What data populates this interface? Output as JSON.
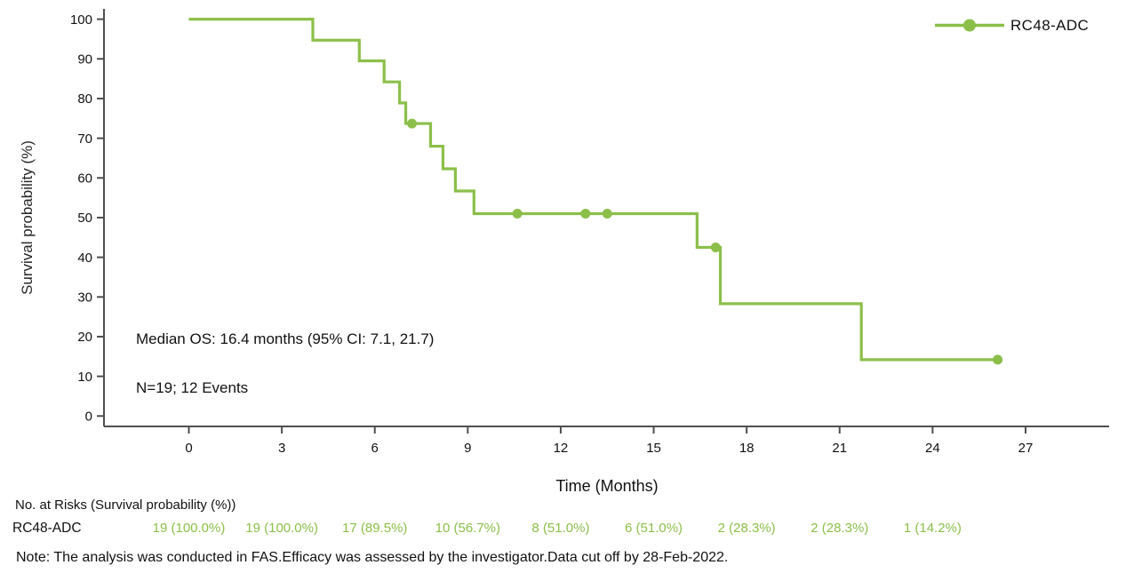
{
  "colors": {
    "curve_green": "#8cbf4a",
    "axis": "#4f4f4f",
    "text": "#111111"
  },
  "chart_data": {
    "type": "line",
    "subtype": "kaplan-meier-step",
    "title": "",
    "xlabel": "Time (Months)",
    "ylabel": "Survival probability (%)",
    "xlim": [
      0,
      27
    ],
    "ylim": [
      0,
      100
    ],
    "x_ticks": [
      0,
      3,
      6,
      9,
      12,
      15,
      18,
      21,
      24,
      27
    ],
    "y_ticks": [
      0,
      10,
      20,
      30,
      40,
      50,
      60,
      70,
      80,
      90,
      100
    ],
    "grid": false,
    "legend": {
      "label": "RC48-ADC",
      "position": "top-right"
    },
    "annotations": [
      "Median OS: 16.4 months (95% CI: 7.1, 21.7)",
      "N=19; 12 Events"
    ],
    "series": [
      {
        "name": "RC48-ADC",
        "color": "#8cbf4a",
        "step_times": [
          0,
          4.0,
          5.5,
          6.3,
          6.8,
          7.0,
          7.8,
          8.2,
          8.6,
          9.2,
          16.4,
          17.15,
          21.7
        ],
        "step_survival": [
          100,
          94.7,
          89.5,
          84.2,
          78.9,
          73.7,
          68.0,
          62.3,
          56.7,
          51.0,
          42.5,
          28.3,
          14.2
        ],
        "end_time": 26.1,
        "censor_marks": [
          {
            "t": 7.2,
            "s": 73.7
          },
          {
            "t": 10.6,
            "s": 51.0
          },
          {
            "t": 12.8,
            "s": 51.0
          },
          {
            "t": 13.5,
            "s": 51.0
          },
          {
            "t": 17.0,
            "s": 42.5
          },
          {
            "t": 26.1,
            "s": 14.2
          }
        ]
      }
    ]
  },
  "risk_table": {
    "header": "No. at Risks (Survival probability (%))",
    "row_label": "RC48-ADC",
    "tick_months": [
      0,
      3,
      6,
      9,
      12,
      15,
      18,
      21,
      24
    ],
    "values": [
      "19 (100.0%)",
      "19 (100.0%)",
      "17 (89.5%)",
      "10 (56.7%)",
      "8 (51.0%)",
      "6 (51.0%)",
      "2 (28.3%)",
      "2 (28.3%)",
      "1 (14.2%)"
    ]
  },
  "note": "Note: The analysis was conducted in FAS.Efficacy was assessed by the investigator.Data cut off by 28-Feb-2022."
}
